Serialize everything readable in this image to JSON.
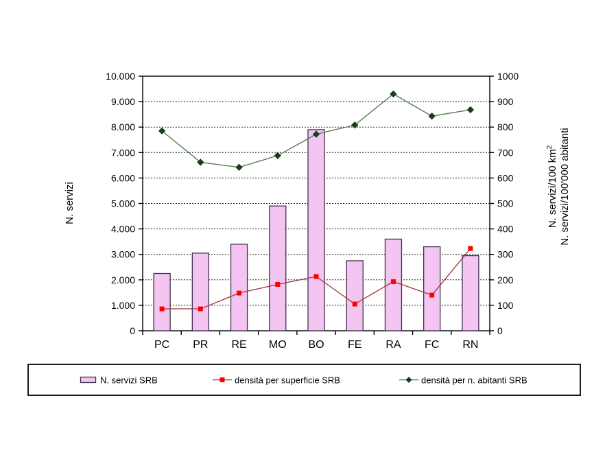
{
  "chart_data": {
    "type": "combo-bar-line",
    "title": "",
    "categories": [
      "PC",
      "PR",
      "RE",
      "MO",
      "BO",
      "FE",
      "RA",
      "FC",
      "RN"
    ],
    "series": [
      {
        "name": "N. servizi SRB",
        "type": "bar",
        "axis": "left",
        "values": [
          2250,
          3050,
          3400,
          4900,
          7900,
          2750,
          3600,
          3300,
          2950
        ],
        "fill": "#F5C5F1",
        "border": "#3D3050"
      },
      {
        "name": "densità per superficie SRB",
        "type": "line",
        "axis": "right",
        "values": [
          86,
          86,
          148,
          182,
          213,
          105,
          193,
          140,
          323
        ],
        "line_color": "#A33E3C",
        "marker": "square",
        "marker_color": "#FF0000"
      },
      {
        "name": "densità per n. abitanti SRB",
        "type": "line",
        "axis": "right",
        "values": [
          785,
          662,
          642,
          688,
          772,
          808,
          930,
          843,
          868
        ],
        "line_color": "#567D56",
        "marker": "diamond",
        "marker_color": "#1C3D1C"
      }
    ],
    "left_axis": {
      "title": "N. servizi",
      "min": 0,
      "max": 10000,
      "ticks": [
        "0",
        "1.000",
        "2.000",
        "3.000",
        "4.000",
        "5.000",
        "6.000",
        "7.000",
        "8.000",
        "9.000",
        "10.000"
      ]
    },
    "right_axis": {
      "title_line1": "N. servizi/100 km",
      "title_sup": "2",
      "title_line2": "N. servizi/100'000 abitanti",
      "min": 0,
      "max": 1000,
      "ticks": [
        "0",
        "100",
        "200",
        "300",
        "400",
        "500",
        "600",
        "700",
        "800",
        "900",
        "1000"
      ]
    },
    "grid": true,
    "legend": {
      "position": "bottom",
      "items": [
        "N. servizi SRB",
        "densità per superficie SRB",
        "densità per n. abitanti SRB"
      ]
    }
  }
}
